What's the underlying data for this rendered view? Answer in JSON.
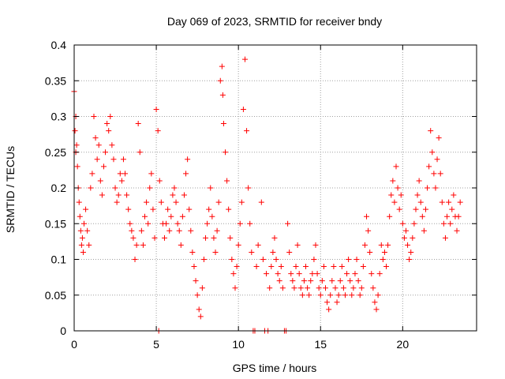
{
  "chart_data": {
    "type": "scatter",
    "title": "Day 069 of 2023, SRMTID for receiver bndy",
    "xlabel": "GPS time / hours",
    "ylabel": "SRMTID / TECUs",
    "xlim": [
      0,
      24.5
    ],
    "ylim": [
      0,
      0.4
    ],
    "x_ticks": [
      0,
      5,
      10,
      15,
      20
    ],
    "x_tick_labels": [
      "0",
      "5",
      "10",
      "15",
      "20"
    ],
    "y_ticks": [
      0,
      0.05,
      0.1,
      0.15,
      0.2,
      0.25,
      0.3,
      0.35,
      0.4
    ],
    "y_tick_labels": [
      "0",
      "0.05",
      "0.1",
      "0.15",
      "0.2",
      "0.25",
      "0.3",
      "0.35",
      "0.4"
    ],
    "grid": true,
    "marker": "+",
    "color": "#ff0000",
    "series": [
      {
        "name": "SRMTID",
        "points": [
          [
            0.0,
            0.335
          ],
          [
            0.05,
            0.28
          ],
          [
            0.1,
            0.3
          ],
          [
            0.1,
            0.25
          ],
          [
            0.15,
            0.26
          ],
          [
            0.2,
            0.23
          ],
          [
            0.25,
            0.2
          ],
          [
            0.3,
            0.18
          ],
          [
            0.35,
            0.16
          ],
          [
            0.4,
            0.14
          ],
          [
            0.45,
            0.12
          ],
          [
            0.5,
            0.13
          ],
          [
            0.55,
            0.11
          ],
          [
            0.6,
            0.15
          ],
          [
            0.7,
            0.17
          ],
          [
            0.8,
            0.14
          ],
          [
            0.9,
            0.12
          ],
          [
            1.0,
            0.2
          ],
          [
            1.1,
            0.22
          ],
          [
            1.2,
            0.3
          ],
          [
            1.3,
            0.27
          ],
          [
            1.4,
            0.24
          ],
          [
            1.5,
            0.26
          ],
          [
            1.6,
            0.21
          ],
          [
            1.7,
            0.19
          ],
          [
            1.8,
            0.23
          ],
          [
            1.9,
            0.25
          ],
          [
            2.0,
            0.29
          ],
          [
            2.1,
            0.28
          ],
          [
            2.2,
            0.3
          ],
          [
            2.3,
            0.26
          ],
          [
            2.4,
            0.24
          ],
          [
            2.5,
            0.2
          ],
          [
            2.6,
            0.18
          ],
          [
            2.7,
            0.19
          ],
          [
            2.8,
            0.22
          ],
          [
            2.9,
            0.21
          ],
          [
            3.0,
            0.24
          ],
          [
            3.1,
            0.22
          ],
          [
            3.2,
            0.19
          ],
          [
            3.3,
            0.17
          ],
          [
            3.4,
            0.15
          ],
          [
            3.5,
            0.14
          ],
          [
            3.6,
            0.13
          ],
          [
            3.7,
            0.1
          ],
          [
            3.8,
            0.12
          ],
          [
            3.9,
            0.29
          ],
          [
            4.0,
            0.25
          ],
          [
            4.1,
            0.14
          ],
          [
            4.2,
            0.12
          ],
          [
            4.3,
            0.16
          ],
          [
            4.4,
            0.18
          ],
          [
            4.5,
            0.15
          ],
          [
            4.6,
            0.2
          ],
          [
            4.7,
            0.22
          ],
          [
            4.8,
            0.17
          ],
          [
            4.9,
            0.13
          ],
          [
            5.0,
            0.31
          ],
          [
            5.1,
            0.28
          ],
          [
            5.15,
            0.0
          ],
          [
            5.2,
            0.21
          ],
          [
            5.3,
            0.18
          ],
          [
            5.4,
            0.15
          ],
          [
            5.5,
            0.13
          ],
          [
            5.6,
            0.15
          ],
          [
            5.7,
            0.17
          ],
          [
            5.8,
            0.14
          ],
          [
            5.9,
            0.16
          ],
          [
            6.0,
            0.19
          ],
          [
            6.1,
            0.2
          ],
          [
            6.2,
            0.18
          ],
          [
            6.3,
            0.15
          ],
          [
            6.4,
            0.14
          ],
          [
            6.5,
            0.12
          ],
          [
            6.6,
            0.16
          ],
          [
            6.7,
            0.19
          ],
          [
            6.8,
            0.22
          ],
          [
            6.9,
            0.24
          ],
          [
            7.0,
            0.17
          ],
          [
            7.1,
            0.14
          ],
          [
            7.2,
            0.11
          ],
          [
            7.3,
            0.09
          ],
          [
            7.4,
            0.07
          ],
          [
            7.5,
            0.05
          ],
          [
            7.6,
            0.03
          ],
          [
            7.7,
            0.02
          ],
          [
            7.8,
            0.06
          ],
          [
            7.9,
            0.1
          ],
          [
            8.0,
            0.13
          ],
          [
            8.1,
            0.15
          ],
          [
            8.2,
            0.17
          ],
          [
            8.3,
            0.2
          ],
          [
            8.4,
            0.16
          ],
          [
            8.5,
            0.13
          ],
          [
            8.6,
            0.11
          ],
          [
            8.7,
            0.14
          ],
          [
            8.8,
            0.18
          ],
          [
            8.9,
            0.35
          ],
          [
            9.0,
            0.37
          ],
          [
            9.05,
            0.33
          ],
          [
            9.1,
            0.29
          ],
          [
            9.2,
            0.25
          ],
          [
            9.3,
            0.21
          ],
          [
            9.4,
            0.17
          ],
          [
            9.5,
            0.13
          ],
          [
            9.6,
            0.1
          ],
          [
            9.7,
            0.08
          ],
          [
            9.8,
            0.06
          ],
          [
            9.9,
            0.09
          ],
          [
            10.0,
            0.12
          ],
          [
            10.1,
            0.15
          ],
          [
            10.2,
            0.18
          ],
          [
            10.3,
            0.31
          ],
          [
            10.4,
            0.38
          ],
          [
            10.5,
            0.28
          ],
          [
            10.6,
            0.2
          ],
          [
            10.7,
            0.15
          ],
          [
            10.8,
            0.11
          ],
          [
            10.9,
            0.0
          ],
          [
            11.0,
            0.0
          ],
          [
            11.1,
            0.09
          ],
          [
            11.2,
            0.12
          ],
          [
            11.4,
            0.18
          ],
          [
            11.5,
            0.1
          ],
          [
            11.6,
            0.0
          ],
          [
            11.7,
            0.08
          ],
          [
            11.8,
            0.0
          ],
          [
            11.9,
            0.06
          ],
          [
            12.0,
            0.09
          ],
          [
            12.1,
            0.11
          ],
          [
            12.2,
            0.13
          ],
          [
            12.3,
            0.1
          ],
          [
            12.4,
            0.08
          ],
          [
            12.5,
            0.07
          ],
          [
            12.6,
            0.09
          ],
          [
            12.7,
            0.06
          ],
          [
            12.8,
            0.0
          ],
          [
            12.9,
            0.0
          ],
          [
            13.0,
            0.15
          ],
          [
            13.1,
            0.11
          ],
          [
            13.2,
            0.08
          ],
          [
            13.3,
            0.07
          ],
          [
            13.4,
            0.06
          ],
          [
            13.5,
            0.09
          ],
          [
            13.6,
            0.12
          ],
          [
            13.7,
            0.08
          ],
          [
            13.8,
            0.06
          ],
          [
            13.9,
            0.05
          ],
          [
            14.0,
            0.07
          ],
          [
            14.1,
            0.09
          ],
          [
            14.2,
            0.06
          ],
          [
            14.3,
            0.05
          ],
          [
            14.4,
            0.07
          ],
          [
            14.5,
            0.08
          ],
          [
            14.6,
            0.1
          ],
          [
            14.7,
            0.12
          ],
          [
            14.8,
            0.08
          ],
          [
            14.9,
            0.06
          ],
          [
            15.0,
            0.05
          ],
          [
            15.1,
            0.07
          ],
          [
            15.2,
            0.09
          ],
          [
            15.3,
            0.06
          ],
          [
            15.4,
            0.04
          ],
          [
            15.5,
            0.03
          ],
          [
            15.6,
            0.05
          ],
          [
            15.7,
            0.07
          ],
          [
            15.8,
            0.09
          ],
          [
            15.9,
            0.06
          ],
          [
            16.0,
            0.04
          ],
          [
            16.1,
            0.05
          ],
          [
            16.2,
            0.07
          ],
          [
            16.3,
            0.09
          ],
          [
            16.4,
            0.06
          ],
          [
            16.5,
            0.05
          ],
          [
            16.6,
            0.08
          ],
          [
            16.7,
            0.1
          ],
          [
            16.8,
            0.07
          ],
          [
            16.9,
            0.05
          ],
          [
            17.0,
            0.06
          ],
          [
            17.1,
            0.08
          ],
          [
            17.2,
            0.1
          ],
          [
            17.3,
            0.07
          ],
          [
            17.4,
            0.05
          ],
          [
            17.5,
            0.06
          ],
          [
            17.6,
            0.09
          ],
          [
            17.7,
            0.12
          ],
          [
            17.8,
            0.16
          ],
          [
            17.9,
            0.14
          ],
          [
            18.0,
            0.11
          ],
          [
            18.1,
            0.08
          ],
          [
            18.2,
            0.06
          ],
          [
            18.3,
            0.04
          ],
          [
            18.4,
            0.03
          ],
          [
            18.5,
            0.05
          ],
          [
            18.6,
            0.08
          ],
          [
            18.7,
            0.12
          ],
          [
            18.8,
            0.1
          ],
          [
            18.9,
            0.11
          ],
          [
            19.0,
            0.09
          ],
          [
            19.1,
            0.12
          ],
          [
            19.2,
            0.16
          ],
          [
            19.3,
            0.19
          ],
          [
            19.4,
            0.21
          ],
          [
            19.5,
            0.18
          ],
          [
            19.6,
            0.23
          ],
          [
            19.7,
            0.2
          ],
          [
            19.8,
            0.17
          ],
          [
            19.9,
            0.19
          ],
          [
            20.0,
            0.15
          ],
          [
            20.1,
            0.13
          ],
          [
            20.2,
            0.14
          ],
          [
            20.3,
            0.12
          ],
          [
            20.4,
            0.1
          ],
          [
            20.5,
            0.11
          ],
          [
            20.6,
            0.13
          ],
          [
            20.7,
            0.15
          ],
          [
            20.8,
            0.17
          ],
          [
            20.9,
            0.19
          ],
          [
            21.0,
            0.21
          ],
          [
            21.1,
            0.18
          ],
          [
            21.2,
            0.16
          ],
          [
            21.3,
            0.14
          ],
          [
            21.4,
            0.17
          ],
          [
            21.5,
            0.2
          ],
          [
            21.6,
            0.23
          ],
          [
            21.7,
            0.28
          ],
          [
            21.8,
            0.25
          ],
          [
            21.9,
            0.22
          ],
          [
            22.0,
            0.2
          ],
          [
            22.1,
            0.24
          ],
          [
            22.2,
            0.27
          ],
          [
            22.3,
            0.22
          ],
          [
            22.4,
            0.18
          ],
          [
            22.5,
            0.15
          ],
          [
            22.6,
            0.13
          ],
          [
            22.7,
            0.16
          ],
          [
            22.8,
            0.18
          ],
          [
            22.9,
            0.15
          ],
          [
            23.0,
            0.17
          ],
          [
            23.1,
            0.19
          ],
          [
            23.2,
            0.16
          ],
          [
            23.3,
            0.14
          ],
          [
            23.4,
            0.16
          ],
          [
            23.5,
            0.18
          ]
        ]
      }
    ]
  }
}
